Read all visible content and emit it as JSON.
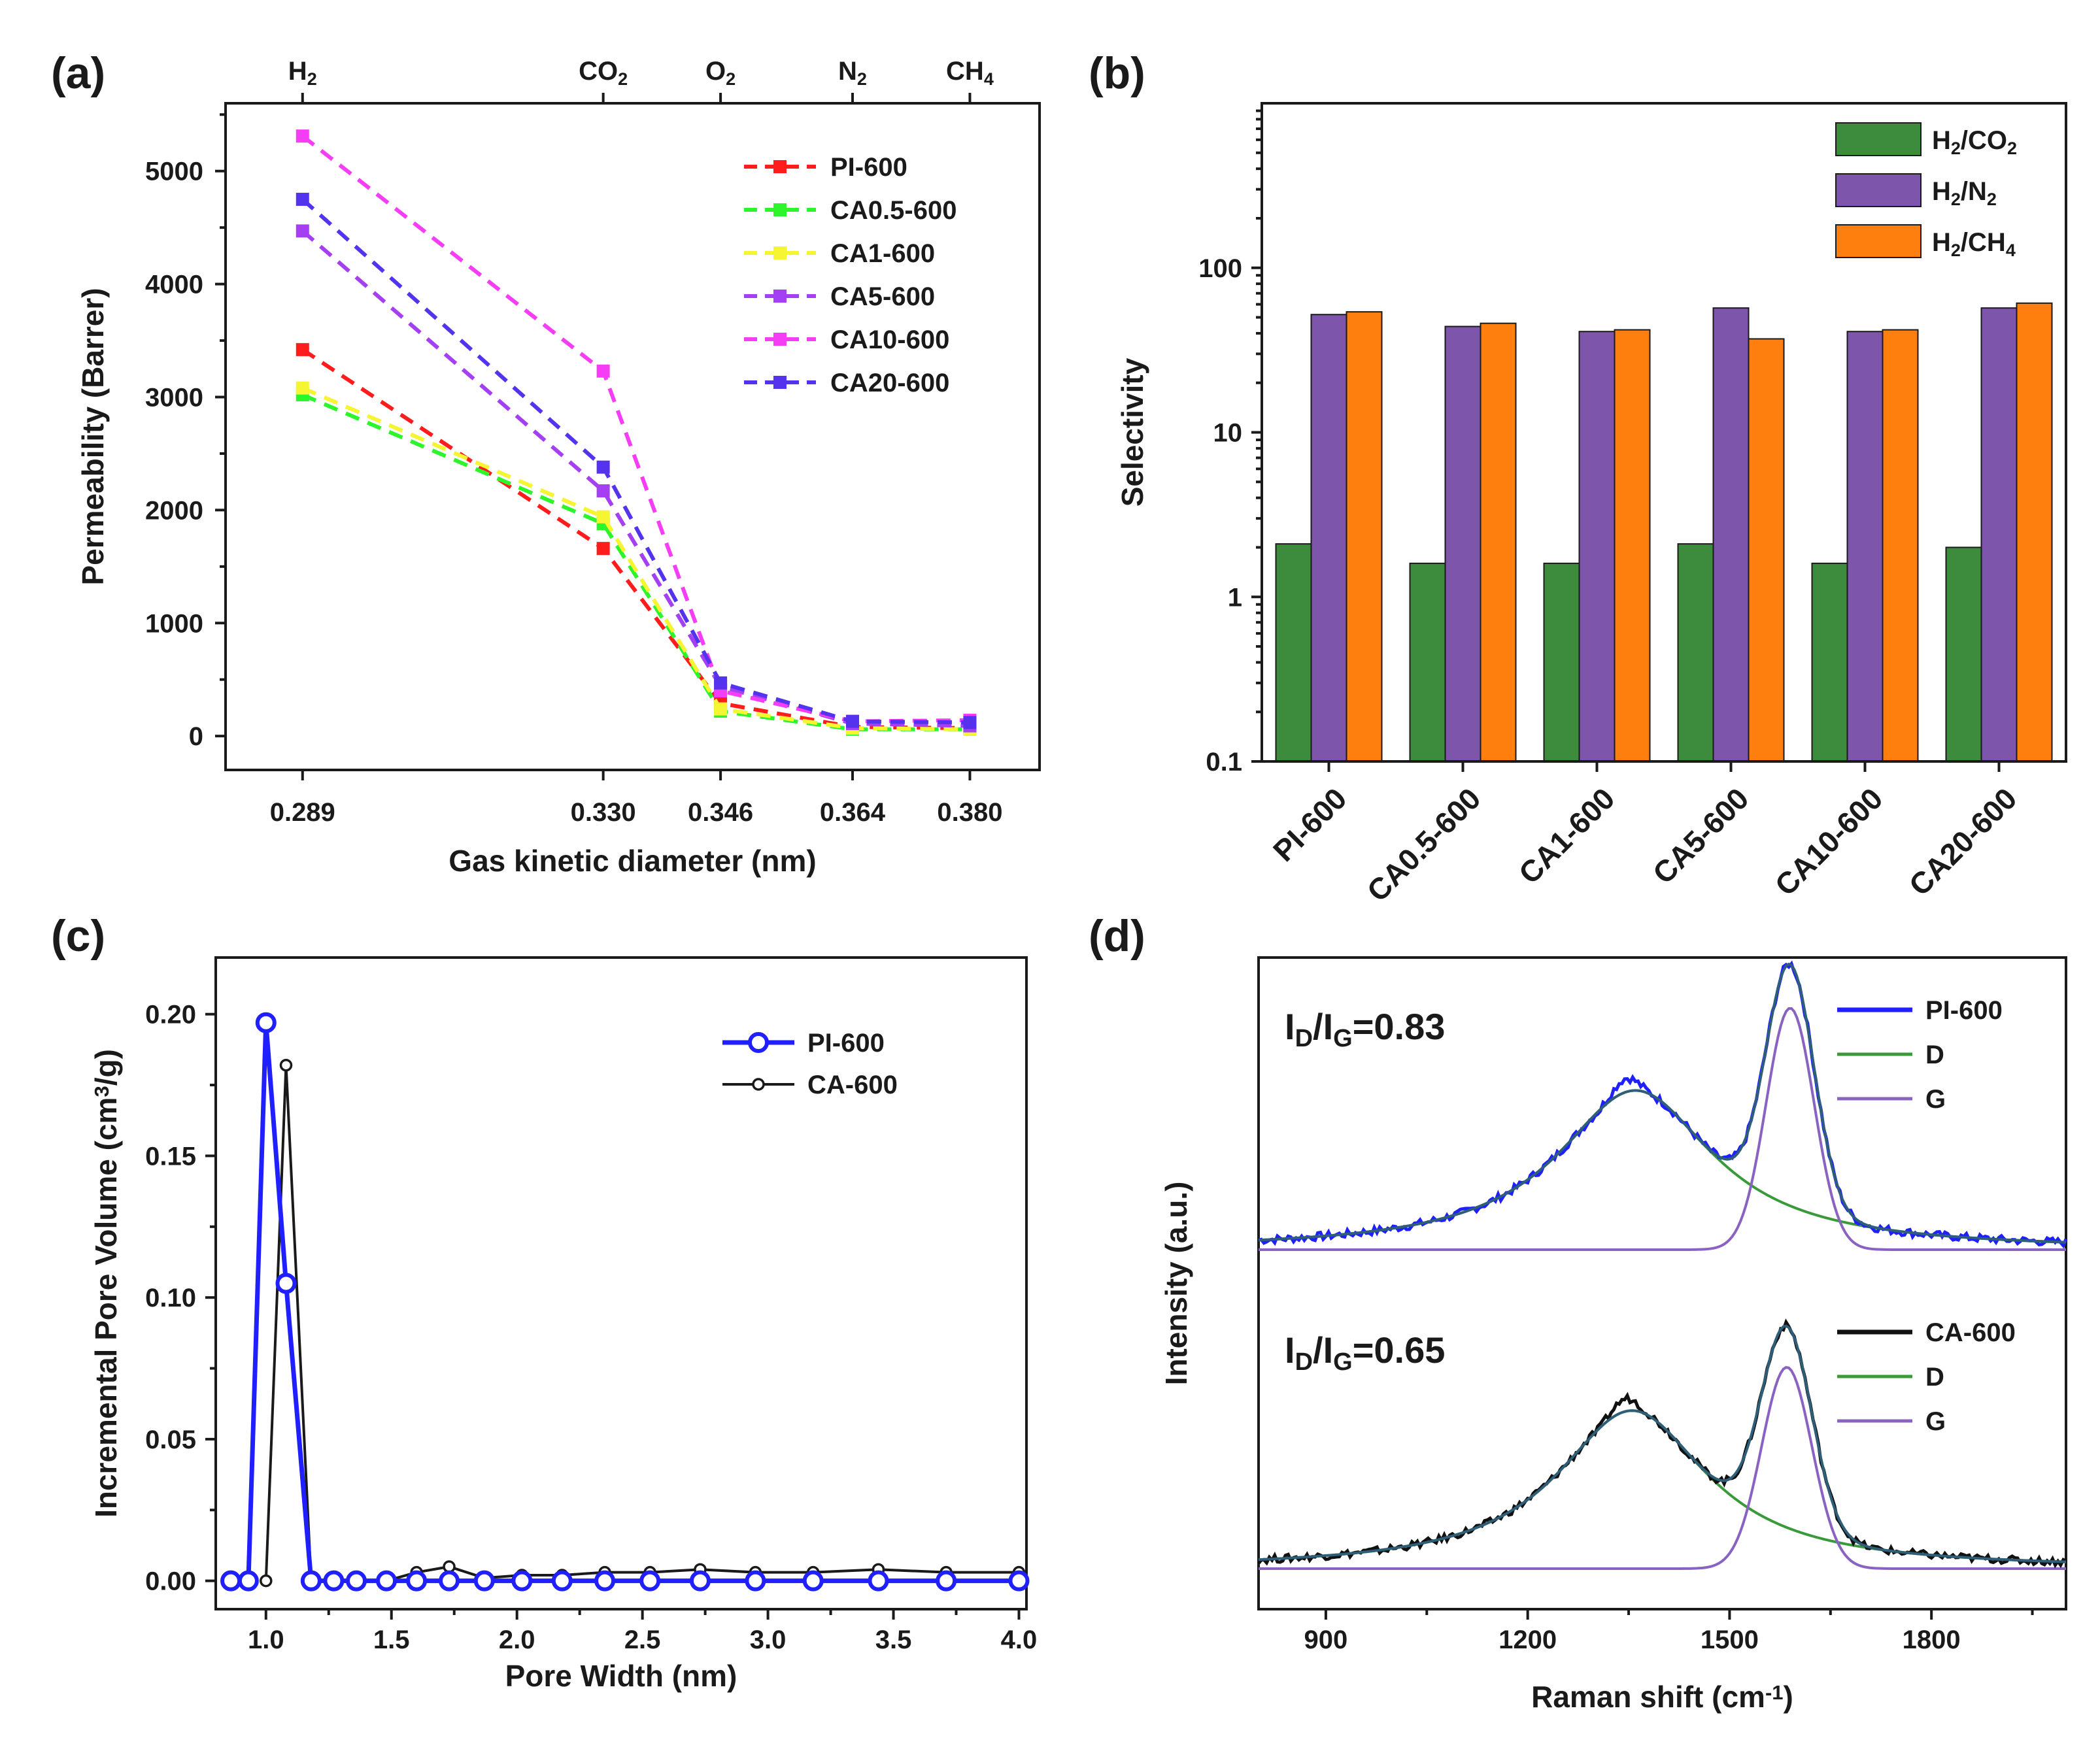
{
  "panels": [
    {
      "id": "a",
      "label": "(a)",
      "chart_data": {
        "type": "line",
        "xlabel": "Gas kinetic diameter (nm)",
        "ylabel": "Permeability (Barrer)",
        "x": [
          0.289,
          0.33,
          0.346,
          0.364,
          0.38
        ],
        "x_tick_labels": [
          "0.289",
          "0.330",
          "0.346",
          "0.364",
          "0.380"
        ],
        "top_tick_labels": [
          {
            "main": "H",
            "sub": "2",
            "tail": ""
          },
          {
            "main": "CO",
            "sub": "2",
            "tail": ""
          },
          {
            "main": "O",
            "sub": "2",
            "tail": ""
          },
          {
            "main": "N",
            "sub": "2",
            "tail": ""
          },
          {
            "main": "CH",
            "sub": "4",
            "tail": ""
          }
        ],
        "xlim": [
          0.2785,
          0.3895
        ],
        "ylim": [
          -300,
          5600
        ],
        "yticks": [
          0,
          1000,
          2000,
          3000,
          4000,
          5000
        ],
        "line_style": "dashed",
        "marker": "square",
        "series": [
          {
            "name": "PI-600",
            "color": "#ff1c1c",
            "values": [
              3420,
              1660,
              290,
              80,
              70
            ]
          },
          {
            "name": "CA0.5-600",
            "color": "#2cf52c",
            "values": [
              3020,
              1880,
              220,
              60,
              60
            ]
          },
          {
            "name": "CA1-600",
            "color": "#f5f532",
            "values": [
              3080,
              1940,
              240,
              70,
              60
            ]
          },
          {
            "name": "CA5-600",
            "color": "#a43ff3",
            "values": [
              4470,
              2170,
              440,
              110,
              90
            ]
          },
          {
            "name": "CA10-600",
            "color": "#f53df5",
            "values": [
              5310,
              3230,
              400,
              130,
              140
            ]
          },
          {
            "name": "CA20-600",
            "color": "#5533ee",
            "values": [
              4750,
              2380,
              470,
              130,
              120
            ]
          }
        ]
      }
    },
    {
      "id": "b",
      "label": "(b)",
      "chart_data": {
        "type": "bar",
        "ylabel": "Selectivity",
        "yscale": "log",
        "ylim": [
          0.1,
          1000
        ],
        "yticks": [
          0.1,
          1,
          10,
          100
        ],
        "ytick_labels": [
          "0.1",
          "1",
          "10",
          "100"
        ],
        "categories": [
          "PI-600",
          "CA0.5-600",
          "CA1-600",
          "CA5-600",
          "CA10-600",
          "CA20-600"
        ],
        "series": [
          {
            "name_main": "H",
            "name_parts": [
              {
                "t": "H"
              },
              {
                "t": "2",
                "sub": true
              },
              {
                "t": "/CO"
              },
              {
                "t": "2",
                "sub": true
              }
            ],
            "color": "#3d8c3d",
            "values": [
              2.1,
              1.6,
              1.6,
              2.1,
              1.6,
              2.0
            ]
          },
          {
            "name_main": "H",
            "name_parts": [
              {
                "t": "H"
              },
              {
                "t": "2",
                "sub": true
              },
              {
                "t": "/N"
              },
              {
                "t": "2",
                "sub": true
              }
            ],
            "color": "#7d55ab",
            "values": [
              52,
              44,
              41,
              57,
              41,
              57
            ]
          },
          {
            "name_main": "H",
            "name_parts": [
              {
                "t": "H"
              },
              {
                "t": "2",
                "sub": true
              },
              {
                "t": "/CH"
              },
              {
                "t": "4",
                "sub": true
              }
            ],
            "color": "#ff7f0e",
            "values": [
              54,
              46,
              42,
              37,
              42,
              61
            ]
          }
        ]
      }
    },
    {
      "id": "c",
      "label": "(c)",
      "chart_data": {
        "type": "line",
        "xlabel": "Pore Width (nm)",
        "ylabel_parts": [
          {
            "t": "Incremental Pore Volume (cm"
          },
          {
            "t": "3",
            "sup": true
          },
          {
            "t": "/g)"
          }
        ],
        "xlim": [
          0.8,
          4.03
        ],
        "ylim": [
          -0.01,
          0.22
        ],
        "xticks": [
          1.0,
          1.5,
          2.0,
          2.5,
          3.0,
          3.5,
          4.0
        ],
        "xtick_labels": [
          "1.0",
          "1.5",
          "2.0",
          "2.5",
          "3.0",
          "3.5",
          "4.0"
        ],
        "yticks": [
          0.0,
          0.05,
          0.1,
          0.15,
          0.2
        ],
        "ytick_labels": [
          "0.00",
          "0.05",
          "0.10",
          "0.15",
          "0.20"
        ],
        "series": [
          {
            "name": "PI-600",
            "color": "#1f1fff",
            "marker": "circle-open",
            "marker_size": "large",
            "line_width": "thick",
            "x": [
              0.86,
              0.93,
              1.0,
              1.08,
              1.18,
              1.27,
              1.36,
              1.48,
              1.6,
              1.73,
              1.87,
              2.02,
              2.18,
              2.35,
              2.53,
              2.73,
              2.95,
              3.18,
              3.44,
              3.71,
              4.0
            ],
            "y": [
              0.0,
              0.0,
              0.197,
              0.105,
              0.0,
              0.0,
              0.0,
              0.0,
              0.0,
              0.0,
              0.0,
              0.0,
              0.0,
              0.0,
              0.0,
              0.0,
              0.0,
              0.0,
              0.0,
              0.0,
              0.0
            ]
          },
          {
            "name": "CA-600",
            "color": "#1a1a1a",
            "marker": "circle-open",
            "marker_size": "small",
            "line_width": "thin",
            "x": [
              1.0,
              1.08,
              1.18,
              1.27,
              1.36,
              1.48,
              1.6,
              1.73,
              1.87,
              2.02,
              2.18,
              2.35,
              2.53,
              2.73,
              2.95,
              3.18,
              3.44,
              3.71,
              4.0
            ],
            "y": [
              0.0,
              0.182,
              0.0,
              0.0,
              0.0,
              0.0,
              0.003,
              0.005,
              0.001,
              0.002,
              0.002,
              0.003,
              0.003,
              0.004,
              0.003,
              0.003,
              0.004,
              0.003,
              0.003
            ]
          }
        ]
      }
    },
    {
      "id": "d",
      "label": "(d)",
      "chart_data": {
        "type": "line",
        "xlabel_parts": [
          {
            "t": "Raman shift (cm"
          },
          {
            "t": "-1",
            "sup": true
          },
          {
            "t": ")"
          }
        ],
        "ylabel": "Intensity (a.u.)",
        "xlim": [
          800,
          2000
        ],
        "xticks": [
          900,
          1200,
          1500,
          1800
        ],
        "xtick_labels": [
          "900",
          "1200",
          "1500",
          "1800"
        ],
        "spectra": [
          {
            "annotation": {
              "parts": [
                {
                  "t": "I"
                },
                {
                  "t": "D",
                  "sub": true
                },
                {
                  "t": "/I"
                },
                {
                  "t": "G",
                  "sub": true
                },
                {
                  "t": "=0.83"
                }
              ]
            },
            "measured": {
              "name": "PI-600",
              "color": "#1f1fff"
            },
            "D_band": {
              "name": "D",
              "color": "#3a9a3a",
              "center": 1360,
              "height": 0.58,
              "width": 135
            },
            "G_band": {
              "name": "G",
              "color": "#8a63c2",
              "center": 1590,
              "height": 0.88,
              "width": 40
            },
            "fit_color": "#2f5f78",
            "baseline": 0.0
          },
          {
            "annotation": {
              "parts": [
                {
                  "t": "I"
                },
                {
                  "t": "D",
                  "sub": true
                },
                {
                  "t": "/I"
                },
                {
                  "t": "G",
                  "sub": true
                },
                {
                  "t": "=0.65"
                }
              ]
            },
            "measured": {
              "name": "CA-600",
              "color": "#111111"
            },
            "D_band": {
              "name": "D",
              "color": "#3a9a3a",
              "center": 1355,
              "height": 0.62,
              "width": 130
            },
            "G_band": {
              "name": "G",
              "color": "#8a63c2",
              "center": 1585,
              "height": 0.79,
              "width": 42
            },
            "fit_color": "#2f5f78",
            "baseline": 0.0
          }
        ]
      }
    }
  ]
}
